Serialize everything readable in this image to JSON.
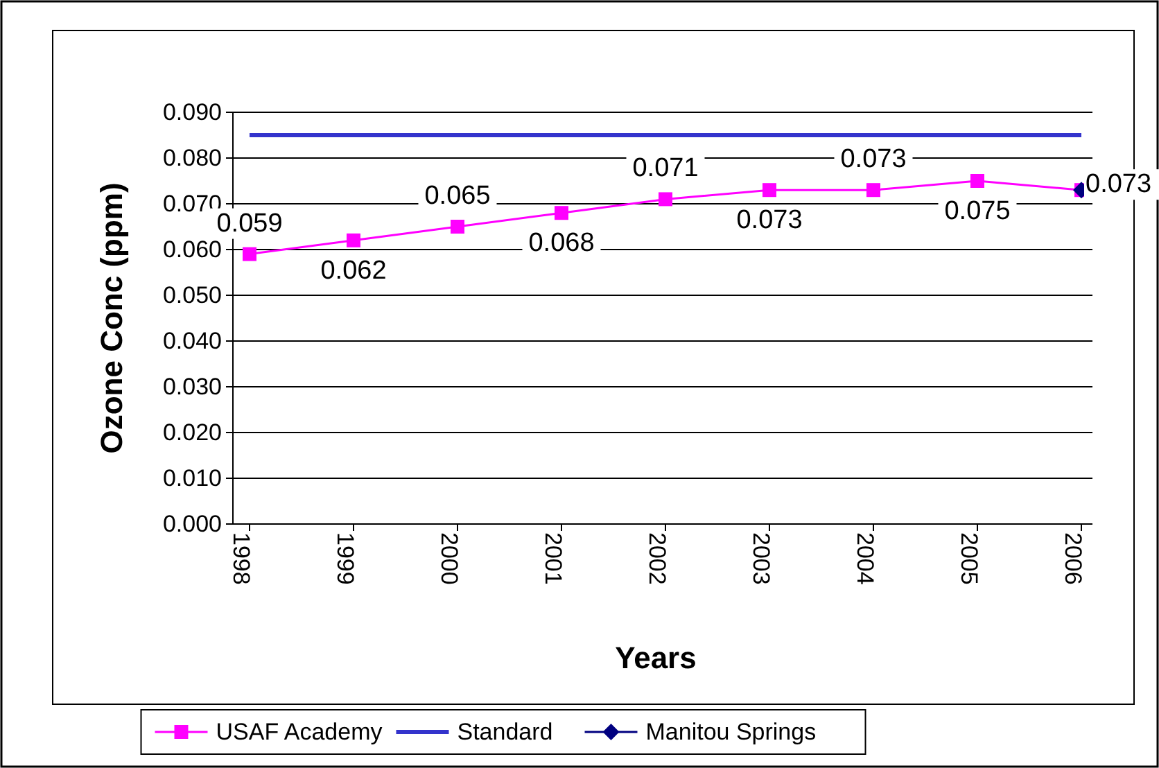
{
  "chart_data": {
    "type": "line",
    "xlabel": "Years",
    "ylabel": "Ozone Conc (ppm)",
    "categories": [
      "1998",
      "1999",
      "2000",
      "2001",
      "2002",
      "2003",
      "2004",
      "2005",
      "2006"
    ],
    "ylim": [
      0,
      0.09
    ],
    "yticks": [
      "0.000",
      "0.010",
      "0.020",
      "0.030",
      "0.040",
      "0.050",
      "0.060",
      "0.070",
      "0.080",
      "0.090"
    ],
    "grid": "y",
    "legend": "bottom",
    "series": [
      {
        "name": "USAF Academy",
        "color": "#ff00ff",
        "marker": "square",
        "values": [
          0.059,
          0.062,
          0.065,
          0.068,
          0.071,
          0.073,
          0.073,
          0.075,
          0.073
        ],
        "value_labels": [
          "0.059",
          "0.062",
          "0.065",
          "0.068",
          "0.071",
          "0.073",
          "0.073",
          "0.075",
          "0.073"
        ]
      },
      {
        "name": "Standard",
        "color": "#3333cc",
        "marker": "none",
        "values": [
          0.085,
          0.085,
          0.085,
          0.085,
          0.085,
          0.085,
          0.085,
          0.085,
          0.085
        ]
      },
      {
        "name": "Manitou Springs",
        "color": "#000080",
        "marker": "diamond",
        "values": [
          null,
          null,
          null,
          null,
          null,
          null,
          null,
          null,
          0.073
        ]
      }
    ]
  }
}
